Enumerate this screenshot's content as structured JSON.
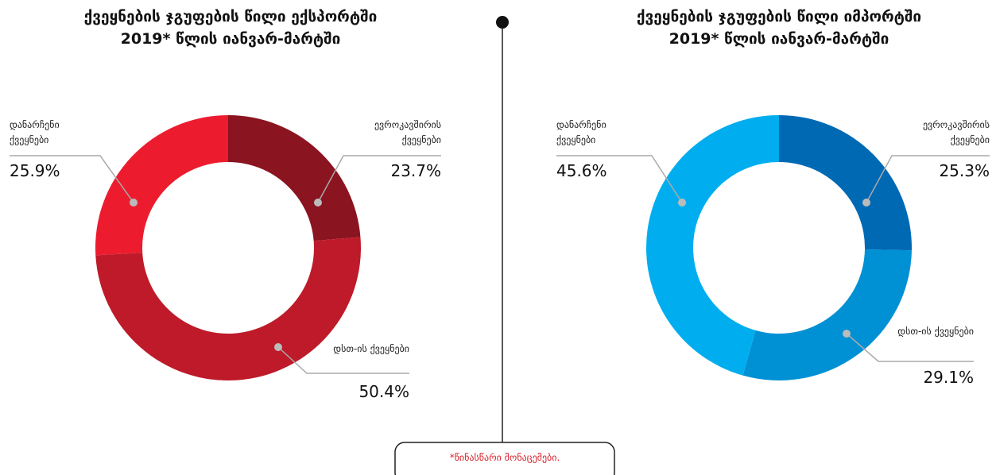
{
  "chart_data": [
    {
      "type": "pie",
      "title": "ქვეყნების ჯგუფების წილი ექსპორტში",
      "subtitle": "2019* წლის იანვარ-მარტში",
      "categories": [
        "ევროკავშირის ქვეყნები",
        "დსთ-ის ქვეყნები",
        "დანარჩენი ქვეყნები"
      ],
      "values": [
        23.7,
        50.4,
        25.9
      ],
      "value_labels": [
        "23.7%",
        "50.4%",
        "25.9%"
      ],
      "colors": [
        "#8a1420",
        "#be1a2a",
        "#ec1c2e"
      ]
    },
    {
      "type": "pie",
      "title": "ქვეყნების ჯგუფების წილი იმპორტში",
      "subtitle": "2019* წლის იანვარ-მარტში",
      "categories": [
        "ევროკავშირის ქვეყნები",
        "დსთ-ის ქვეყნები",
        "დანარჩენი ქვეყნები"
      ],
      "values": [
        25.3,
        29.1,
        45.6
      ],
      "value_labels": [
        "25.3%",
        "29.1%",
        "45.6%"
      ],
      "colors": [
        "#0069b4",
        "#0090d4",
        "#00aeef"
      ]
    }
  ],
  "footnote": "*წინასწარი მონაცემები."
}
